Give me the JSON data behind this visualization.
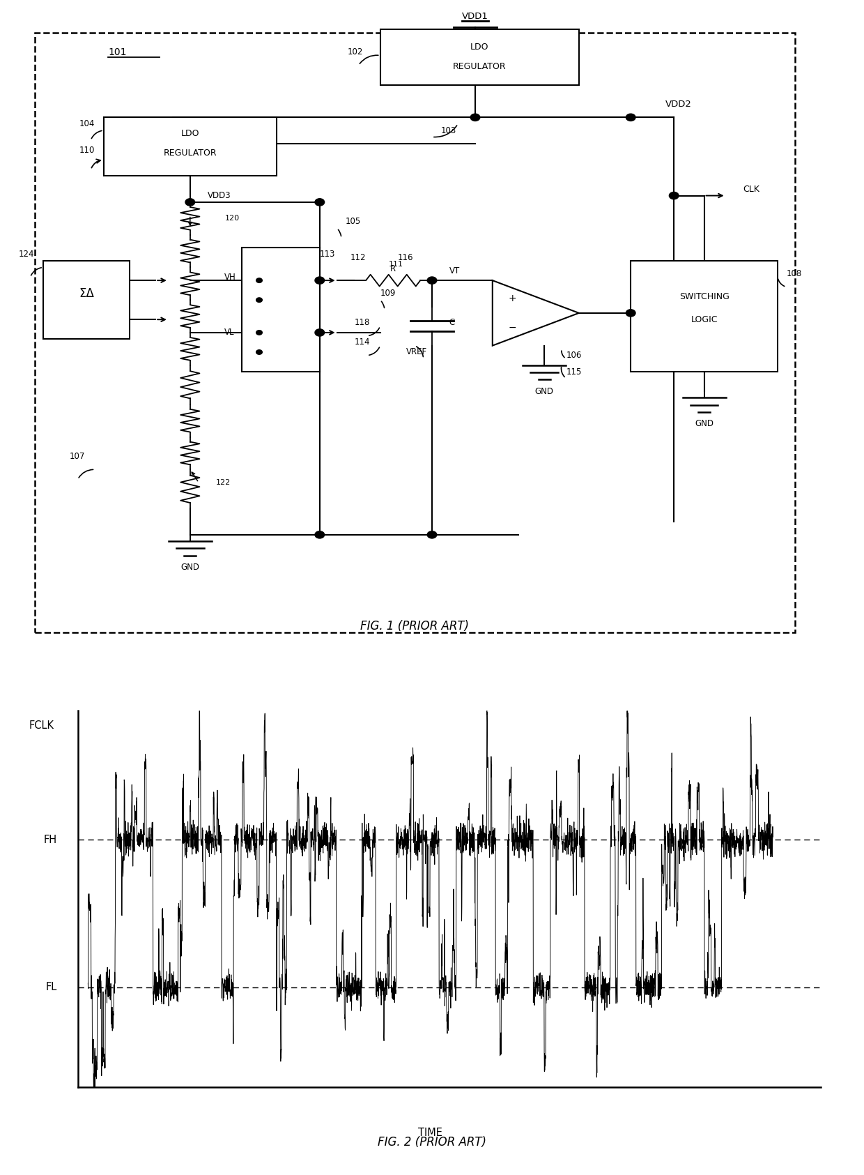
{
  "fig1_caption": "FIG. 1 (PRIOR ART)",
  "fig2_caption": "FIG. 2 (PRIOR ART)",
  "fig2_ylabel": "FCLK",
  "fig2_xlabel": "TIME",
  "fig2_fh_label": "FH",
  "fig2_fl_label": "FL",
  "background_color": "#ffffff",
  "line_color": "#000000",
  "seed": 42,
  "fig2_fh": 0.65,
  "fig2_fl": 0.25,
  "fig2_fh_display": 0.62,
  "fig2_fl_display": 0.22
}
